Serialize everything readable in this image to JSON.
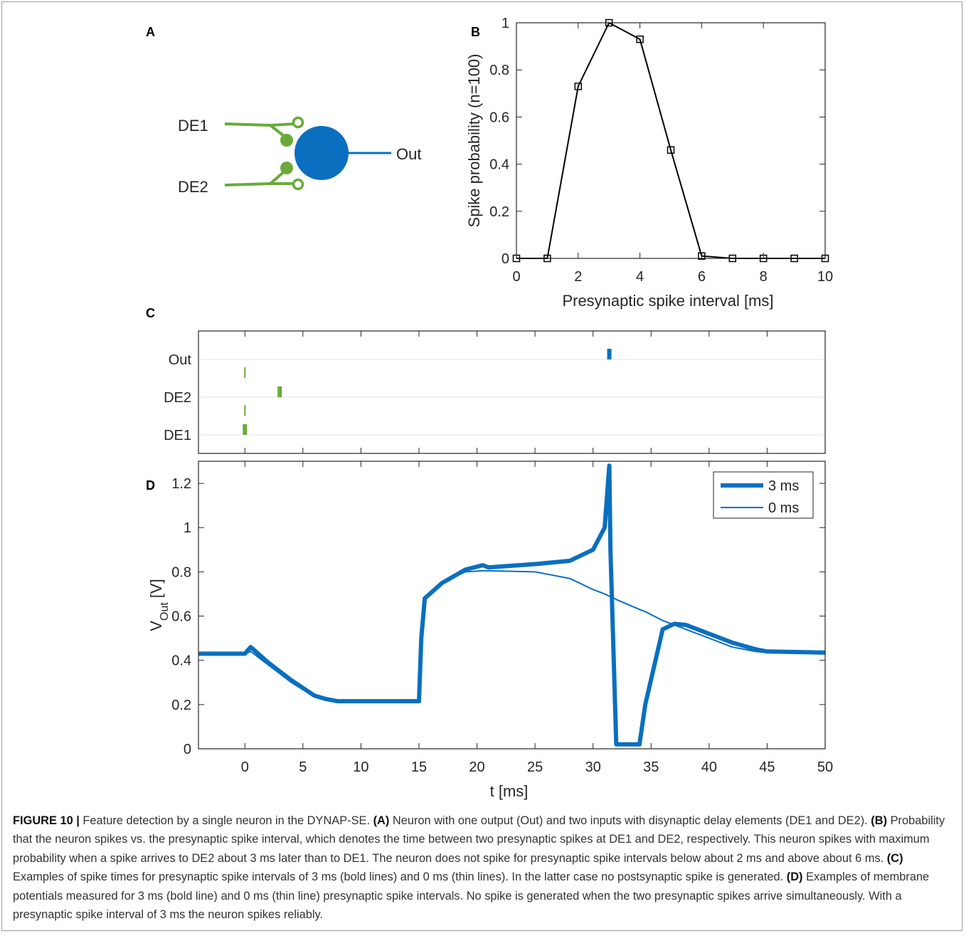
{
  "panel_a": {
    "label": "A",
    "inputs": [
      "DE1",
      "DE2"
    ],
    "output": "Out"
  },
  "chart_data": [
    {
      "type": "line",
      "panel": "B",
      "xlabel": "Presynaptic spike interval [ms]",
      "ylabel": "Spike probability (n=100)",
      "x": [
        0,
        1,
        2,
        3,
        4,
        5,
        6,
        7,
        8,
        9,
        10
      ],
      "series": [
        {
          "color": "#000000",
          "line_width": 2,
          "marker": "square",
          "values": [
            0,
            0,
            0.73,
            1,
            0.93,
            0.46,
            0.01,
            0,
            0,
            0,
            0
          ]
        }
      ],
      "xlim": [
        0,
        10
      ],
      "xticks": [
        0,
        2,
        4,
        6,
        8,
        10
      ],
      "ylim": [
        0,
        1
      ],
      "yticks": [
        0,
        0.2,
        0.4,
        0.6,
        0.8,
        1
      ]
    },
    {
      "type": "raster",
      "panel": "C",
      "categories": [
        "DE1",
        "DE2",
        "Out"
      ],
      "colors": [
        "#6aaa3a",
        "#6aaa3a",
        "#0a6fbf"
      ],
      "series": [
        {
          "line_width": 6,
          "values": [
            0,
            3,
            31.4
          ]
        },
        {
          "line_width": 2,
          "values": [
            0,
            0,
            null
          ]
        }
      ],
      "xlim": [
        -4,
        50
      ],
      "xticks": [
        0,
        5,
        10,
        15,
        20,
        25,
        30,
        35,
        40,
        45,
        50
      ],
      "xtick_labels": false,
      "grid": true
    },
    {
      "type": "line",
      "panel": "D",
      "xlabel": "t [ms]",
      "ylabel": {
        "main": "V",
        "sub": "Out",
        "unit": "[V]"
      },
      "x": [
        -4,
        0,
        0.5,
        2,
        4,
        6,
        7,
        8,
        10,
        15,
        15.2,
        15.5,
        17,
        19,
        20.5,
        21,
        25,
        28,
        30,
        31,
        31.4,
        31.5,
        32,
        34,
        34.5,
        36,
        37,
        38,
        40,
        42,
        44,
        45,
        50
      ],
      "series": [
        {
          "name": "3 ms",
          "color": "#0a6fbf",
          "line_width": 6,
          "values": [
            0.43,
            0.43,
            0.46,
            0.39,
            0.31,
            0.24,
            0.225,
            0.215,
            0.215,
            0.215,
            0.5,
            0.68,
            0.75,
            0.81,
            0.83,
            0.82,
            0.835,
            0.85,
            0.9,
            1.0,
            1.28,
            0.9,
            0.02,
            0.02,
            0.2,
            0.54,
            0.565,
            0.56,
            0.52,
            0.48,
            0.45,
            0.44,
            0.435
          ]
        },
        {
          "name": "0 ms",
          "color": "#0a6fbf",
          "line_width": 2,
          "values": [
            0.43,
            0.43,
            0.44,
            0.38,
            0.3,
            0.235,
            0.225,
            0.215,
            0.215,
            0.215,
            0.5,
            0.68,
            0.75,
            0.8,
            0.805,
            0.805,
            0.8,
            0.77,
            0.72,
            0.7,
            0.69,
            0.69,
            0.675,
            0.63,
            0.62,
            0.58,
            0.56,
            0.54,
            0.5,
            0.46,
            0.44,
            0.435,
            0.435
          ]
        }
      ],
      "xlim": [
        -4,
        50
      ],
      "xticks": [
        0,
        5,
        10,
        15,
        20,
        25,
        30,
        35,
        40,
        45,
        50
      ],
      "ylim": [
        0,
        1.3
      ],
      "yticks": [
        0,
        0.2,
        0.4,
        0.6,
        0.8,
        1,
        1.2
      ],
      "legend": "upper right"
    }
  ],
  "caption": {
    "runs": [
      {
        "text": "FIGURE 10 |",
        "bold": true
      },
      {
        "text": " Feature detection by a single neuron in the DYNAP-SE. "
      },
      {
        "text": "(A)",
        "bold": true
      },
      {
        "text": " Neuron with one output (Out) and two inputs with disynaptic delay elements (DE1 and DE2). "
      },
      {
        "text": "(B)",
        "bold": true
      },
      {
        "text": " Probability that the neuron spikes vs. the presynaptic spike interval, which denotes the time between two presynaptic spikes at DE1 and DE2, respectively. This neuron spikes with maximum probability when a spike arrives to DE2 about 3 ms later than to DE1. The neuron does not spike for presynaptic spike intervals below about 2 ms and above about 6 ms. "
      },
      {
        "text": "(C)",
        "bold": true
      },
      {
        "text": " Examples of spike times for presynaptic spike intervals of 3 ms (bold lines) and 0 ms (thin lines). In the latter case no postsynaptic spike is generated. "
      },
      {
        "text": "(D)",
        "bold": true
      },
      {
        "text": " Examples of membrane potentials measured for 3 ms (bold line) and 0 ms (thin line) presynaptic spike intervals. No spike is generated when the two presynaptic spikes arrive simultaneously. With a presynaptic spike interval of 3 ms the neuron spikes reliably."
      }
    ]
  }
}
